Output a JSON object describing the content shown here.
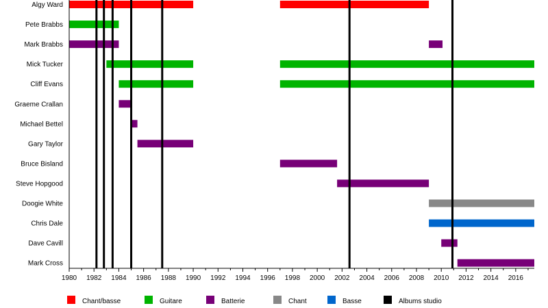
{
  "chart_data": {
    "type": "timeline",
    "title": "",
    "xlabel": "",
    "ylabel": "",
    "xlim": [
      1980,
      2017.5
    ],
    "x_ticks": [
      "1980",
      "1982",
      "1984",
      "1986",
      "1988",
      "1990",
      "1992",
      "1994",
      "1996",
      "1998",
      "2000",
      "2002",
      "2004",
      "2006",
      "2008",
      "2010",
      "2012",
      "2014",
      "2016"
    ],
    "grid": false,
    "legend_placement": "bottom",
    "legend": [
      {
        "name": "Chant/basse",
        "color": "#ff0000"
      },
      {
        "name": "Guitare",
        "color": "#00b400"
      },
      {
        "name": "Batterie",
        "color": "#770077"
      },
      {
        "name": "Chant",
        "color": "#888888"
      },
      {
        "name": "Basse",
        "color": "#0066cc"
      },
      {
        "name": "Albums studio",
        "color": "#000000"
      }
    ],
    "members": [
      {
        "name": "Algy Ward",
        "periods": [
          {
            "start": 1980.0,
            "end": 1990.0,
            "role": "Chant/basse"
          },
          {
            "start": 1997.0,
            "end": 2009.0,
            "role": "Chant/basse"
          }
        ]
      },
      {
        "name": "Pete Brabbs",
        "periods": [
          {
            "start": 1980.0,
            "end": 1984.0,
            "role": "Guitare"
          }
        ]
      },
      {
        "name": "Mark Brabbs",
        "periods": [
          {
            "start": 1980.0,
            "end": 1984.0,
            "role": "Batterie"
          },
          {
            "start": 2009.0,
            "end": 2010.1,
            "role": "Batterie"
          }
        ]
      },
      {
        "name": "Mick Tucker",
        "periods": [
          {
            "start": 1983.0,
            "end": 1990.0,
            "role": "Guitare"
          },
          {
            "start": 1997.0,
            "end": 2017.5,
            "role": "Guitare"
          }
        ]
      },
      {
        "name": "Cliff Evans",
        "periods": [
          {
            "start": 1984.0,
            "end": 1990.0,
            "role": "Guitare"
          },
          {
            "start": 1997.0,
            "end": 2017.5,
            "role": "Guitare"
          }
        ]
      },
      {
        "name": "Graeme Crallan",
        "periods": [
          {
            "start": 1984.0,
            "end": 1985.0,
            "role": "Batterie"
          }
        ]
      },
      {
        "name": "Michael Bettel",
        "periods": [
          {
            "start": 1985.0,
            "end": 1985.5,
            "role": "Batterie"
          }
        ]
      },
      {
        "name": "Gary Taylor",
        "periods": [
          {
            "start": 1985.5,
            "end": 1990.0,
            "role": "Batterie"
          }
        ]
      },
      {
        "name": "Bruce Bisland",
        "periods": [
          {
            "start": 1997.0,
            "end": 2001.6,
            "role": "Batterie"
          }
        ]
      },
      {
        "name": "Steve Hopgood",
        "periods": [
          {
            "start": 2001.6,
            "end": 2009.0,
            "role": "Batterie"
          }
        ]
      },
      {
        "name": "Doogie White",
        "periods": [
          {
            "start": 2009.0,
            "end": 2017.5,
            "role": "Chant"
          }
        ]
      },
      {
        "name": "Chris Dale",
        "periods": [
          {
            "start": 2009.0,
            "end": 2017.5,
            "role": "Basse"
          }
        ]
      },
      {
        "name": "Dave Cavill",
        "periods": [
          {
            "start": 2010.0,
            "end": 2011.3,
            "role": "Batterie"
          }
        ]
      },
      {
        "name": "Mark Cross",
        "periods": [
          {
            "start": 2011.3,
            "end": 2017.5,
            "role": "Batterie"
          }
        ]
      }
    ],
    "albums": [
      1982.2,
      1982.8,
      1983.5,
      1985.0,
      1987.5,
      2002.6,
      2010.9
    ]
  }
}
